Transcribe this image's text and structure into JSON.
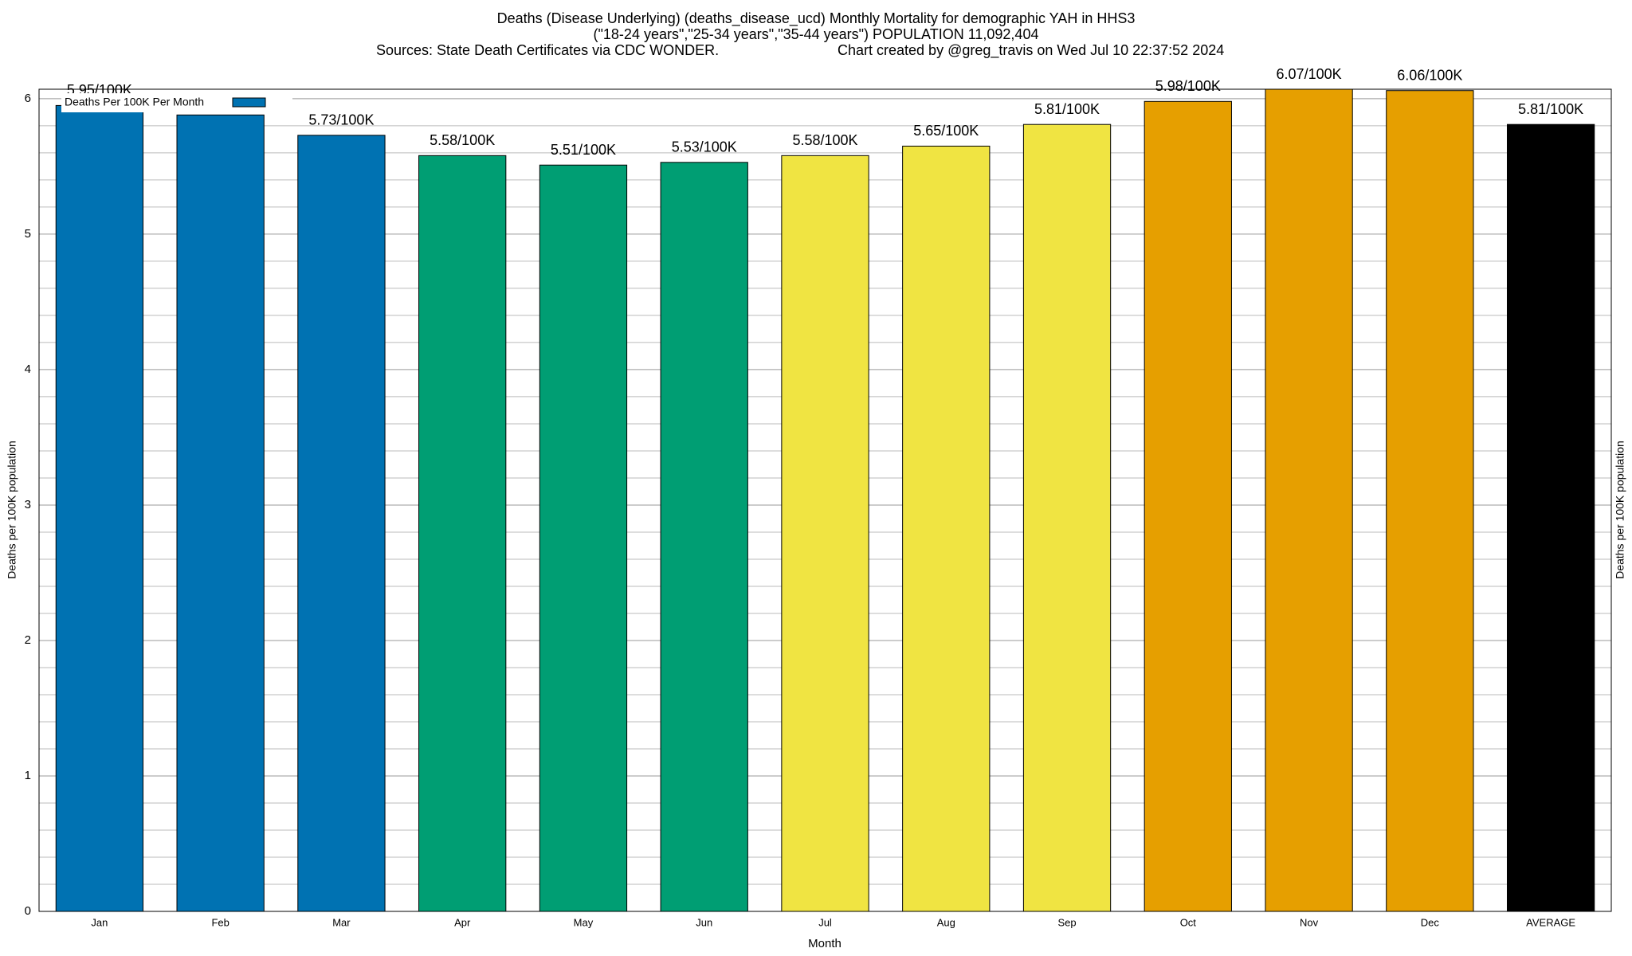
{
  "chart_data": {
    "type": "bar",
    "title": "Deaths (Disease Underlying) (deaths_disease_ucd) Monthly Mortality for demographic YAH in HHS3",
    "subtitle": "(\"18-24 years\",\"25-34 years\",\"35-44 years\") POPULATION 11,092,404",
    "source": "Sources: State Death Certificates via CDC WONDER.",
    "credit": "Chart created by @greg_travis on Wed Jul 10 22:37:52 2024",
    "xlabel": "Month",
    "ylabel": "Deaths per 100K population",
    "legend": "Deaths Per 100K Per Month",
    "legend_color": "#0072b2",
    "legend_position": "upper-left",
    "categories": [
      "Jan",
      "Feb",
      "Mar",
      "Apr",
      "May",
      "Jun",
      "Jul",
      "Aug",
      "Sep",
      "Oct",
      "Nov",
      "Dec",
      "AVERAGE"
    ],
    "values": [
      5.95,
      5.88,
      5.73,
      5.58,
      5.51,
      5.53,
      5.58,
      5.65,
      5.81,
      5.98,
      6.07,
      6.06,
      5.81
    ],
    "value_labels": [
      "5.95/100K",
      null,
      "5.73/100K",
      "5.58/100K",
      "5.51/100K",
      "5.53/100K",
      "5.58/100K",
      "5.65/100K",
      "5.81/100K",
      "5.98/100K",
      "6.07/100K",
      "6.06/100K",
      "5.81/100K"
    ],
    "colors": [
      "#0072b2",
      "#0072b2",
      "#0072b2",
      "#009e73",
      "#009e73",
      "#009e73",
      "#f0e442",
      "#f0e442",
      "#f0e442",
      "#e69f00",
      "#e69f00",
      "#e69f00",
      "#000000"
    ],
    "ylim": [
      0,
      6.07
    ],
    "yticks": [
      0,
      1,
      2,
      3,
      4,
      5,
      6
    ],
    "minor_yticks": [
      0.2,
      0.4,
      0.6,
      0.8,
      1.2,
      1.4,
      1.6,
      1.8,
      2.2,
      2.4,
      2.6,
      2.8,
      3.2,
      3.4,
      3.6,
      3.8,
      4.2,
      4.4,
      4.6,
      4.8,
      5.2,
      5.4,
      5.6,
      5.8
    ],
    "grid": true
  }
}
